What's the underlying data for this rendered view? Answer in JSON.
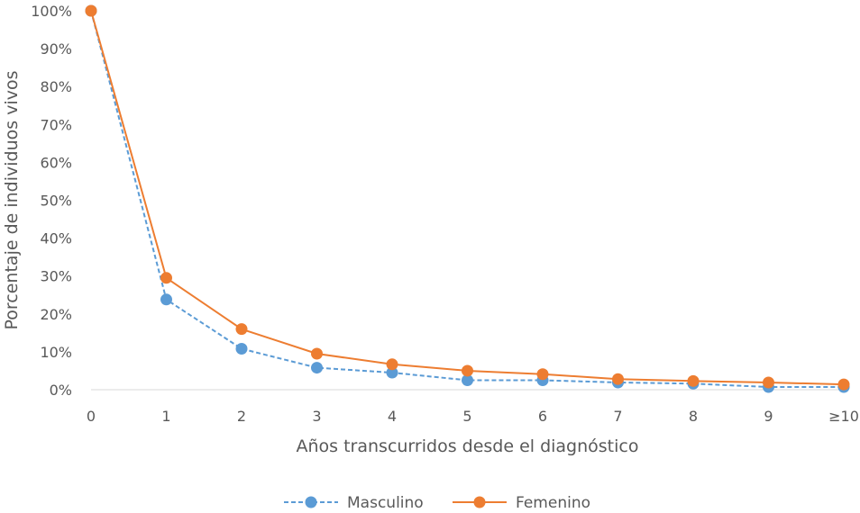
{
  "chart_data": {
    "type": "line",
    "xlabel": "Años transcurridos desde el diagnóstico",
    "ylabel": "Porcentaje de individuos vivos",
    "categories": [
      "0",
      "1",
      "2",
      "3",
      "4",
      "5",
      "6",
      "7",
      "8",
      "9",
      "≥10"
    ],
    "ylim": [
      0,
      100
    ],
    "yticks": [
      "0%",
      "10%",
      "20%",
      "30%",
      "40%",
      "50%",
      "60%",
      "70%",
      "80%",
      "90%",
      "100%"
    ],
    "grid": false,
    "legend": "bottom",
    "series": [
      {
        "name": "Masculino",
        "color": "#5B9BD5",
        "line_style": "dashed",
        "values": [
          100,
          23.8,
          10.8,
          5.8,
          4.5,
          2.5,
          2.5,
          1.9,
          1.6,
          0.7,
          0.7
        ]
      },
      {
        "name": "Femenino",
        "color": "#ED7D31",
        "line_style": "solid",
        "values": [
          100,
          29.5,
          16.0,
          9.5,
          6.7,
          5.0,
          4.1,
          2.8,
          2.3,
          1.9,
          1.4
        ]
      }
    ]
  }
}
